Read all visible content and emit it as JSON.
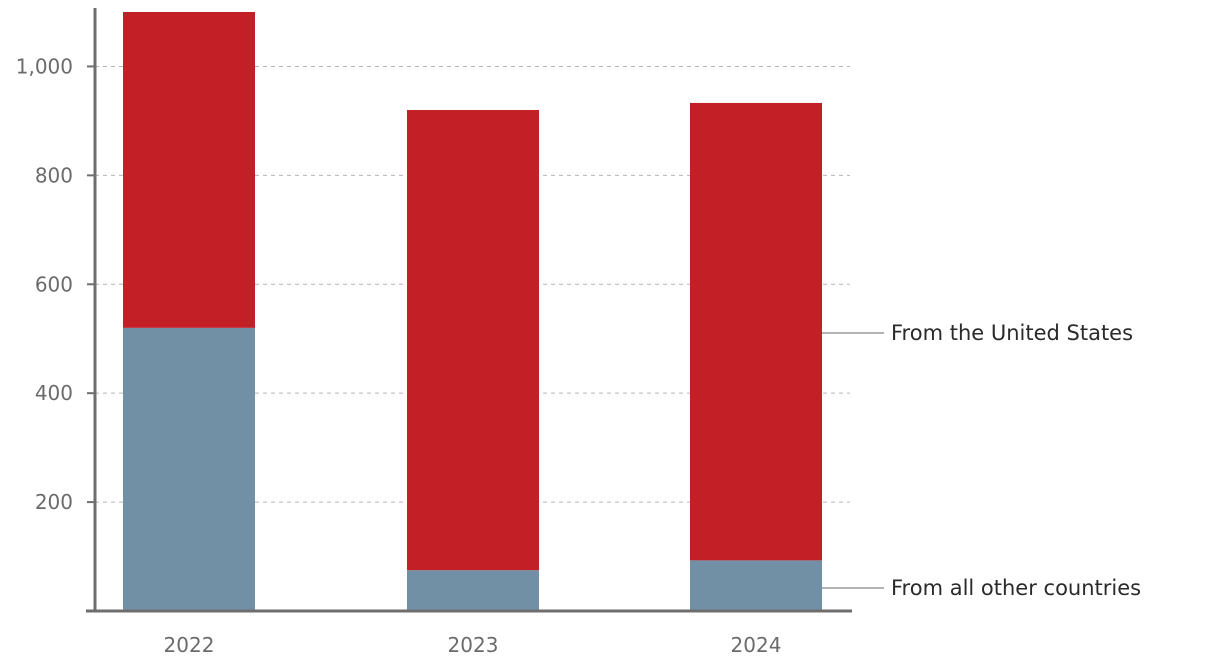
{
  "chart_data": {
    "type": "bar",
    "stacked": true,
    "categories": [
      "2022",
      "2023",
      "2024"
    ],
    "series": [
      {
        "name": "From all other countries",
        "values": [
          520,
          75,
          93
        ],
        "color": "#7190a5"
      },
      {
        "name": "From the United States",
        "values": [
          580,
          845,
          840
        ],
        "color": "#c21f27"
      }
    ],
    "ylim": [
      0,
      1100
    ],
    "yticks": [
      200,
      400,
      600,
      800,
      1000
    ],
    "ytick_labels": [
      "200",
      "400",
      "600",
      "800",
      "1,000"
    ],
    "grid": true,
    "legend": "right-inline",
    "axis_color": "#6e6e6e",
    "grid_color": "#b5b5b5"
  }
}
